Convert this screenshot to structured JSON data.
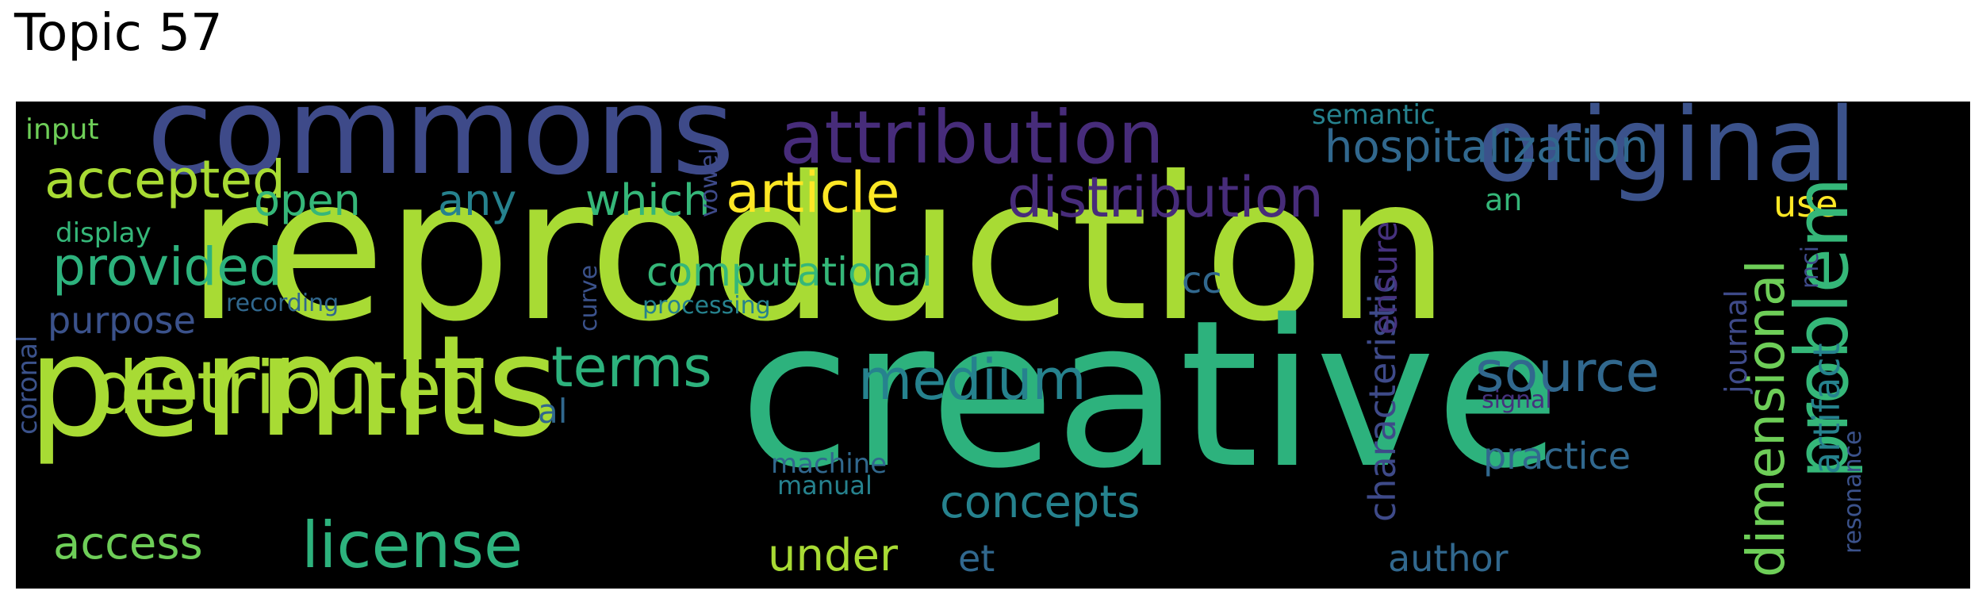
{
  "title": "Topic 57",
  "colors": {
    "background": "#000000",
    "palette": [
      "#a8db34",
      "#2db27d",
      "#3e4a89",
      "#472c7a",
      "#fde725",
      "#3b528b",
      "#31688e",
      "#26828e",
      "#35b779",
      "#6ece58",
      "#46327e",
      "#440154"
    ]
  },
  "words": [
    {
      "text": "reproduction",
      "color": "#a8db34"
    },
    {
      "text": "creative",
      "color": "#2db27d"
    },
    {
      "text": "commons",
      "color": "#3e4a89"
    },
    {
      "text": "permits",
      "color": "#a8db34"
    },
    {
      "text": "original",
      "color": "#3b528b"
    },
    {
      "text": "attribution",
      "color": "#472c7a"
    },
    {
      "text": "license",
      "color": "#2db27d"
    },
    {
      "text": "distributed",
      "color": "#a8db34"
    },
    {
      "text": "medium",
      "color": "#26828e"
    },
    {
      "text": "distribution",
      "color": "#472c7a"
    },
    {
      "text": "article",
      "color": "#fde725"
    },
    {
      "text": "terms",
      "color": "#2db27d"
    },
    {
      "text": "source",
      "color": "#31688e"
    },
    {
      "text": "access",
      "color": "#6ece58"
    },
    {
      "text": "provided",
      "color": "#2db27d"
    },
    {
      "text": "accepted",
      "color": "#a8db34"
    },
    {
      "text": "open",
      "color": "#35b779"
    },
    {
      "text": "any",
      "color": "#26828e"
    },
    {
      "text": "which",
      "color": "#35b779"
    },
    {
      "text": "under",
      "color": "#a8db34"
    },
    {
      "text": "et",
      "color": "#31688e"
    },
    {
      "text": "author",
      "color": "#31688e"
    },
    {
      "text": "hospitalization",
      "color": "#31688e"
    },
    {
      "text": "computational",
      "color": "#35b779"
    },
    {
      "text": "concepts",
      "color": "#26828e"
    },
    {
      "text": "use",
      "color": "#fde725"
    },
    {
      "text": "cc",
      "color": "#31688e"
    },
    {
      "text": "al",
      "color": "#31688e"
    },
    {
      "text": "practice",
      "color": "#31688e"
    },
    {
      "text": "purpose",
      "color": "#3b528b"
    },
    {
      "text": "display",
      "color": "#35b779"
    },
    {
      "text": "input",
      "color": "#6ece58"
    },
    {
      "text": "semantic",
      "color": "#26828e"
    },
    {
      "text": "an",
      "color": "#35b779"
    },
    {
      "text": "signal",
      "color": "#46327e"
    },
    {
      "text": "machine",
      "color": "#31688e"
    },
    {
      "text": "manual",
      "color": "#26828e"
    },
    {
      "text": "processing",
      "color": "#26828e"
    },
    {
      "text": "recording",
      "color": "#31688e"
    },
    {
      "text": "problem",
      "color": "#35b779"
    },
    {
      "text": "dimensional",
      "color": "#6ece58"
    },
    {
      "text": "artifact",
      "color": "#26828e"
    },
    {
      "text": "characteristic",
      "color": "#3e4a89"
    },
    {
      "text": "ensure",
      "color": "#46327e"
    },
    {
      "text": "journal",
      "color": "#3e4a89"
    },
    {
      "text": "coronal",
      "color": "#3b528b"
    },
    {
      "text": "resonance",
      "color": "#3b528b"
    },
    {
      "text": "curve",
      "color": "#3b528b"
    },
    {
      "text": "vowel",
      "color": "#3e4a89"
    },
    {
      "text": "mci",
      "color": "#3e4a89"
    }
  ]
}
